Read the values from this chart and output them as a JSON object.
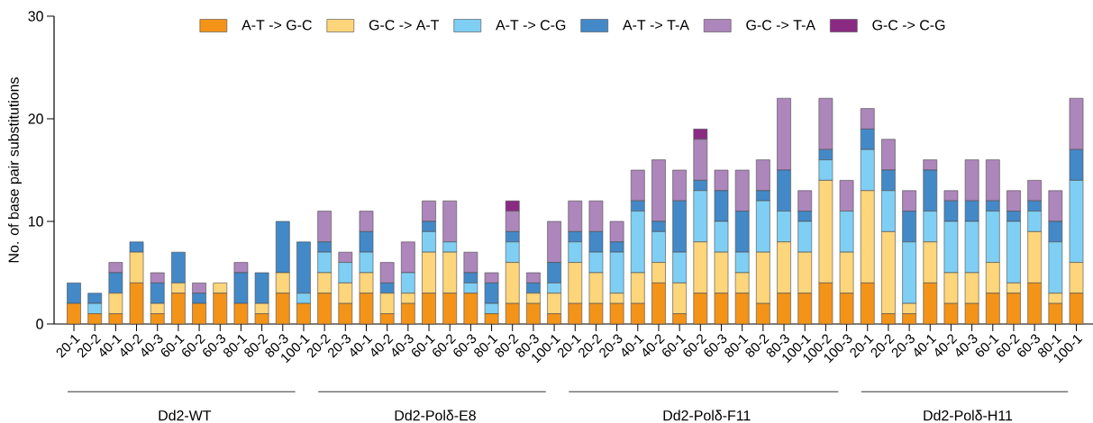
{
  "chart_data": {
    "type": "bar",
    "stacked": true,
    "ylabel": "No. of base pair substitutions",
    "categories": [
      "20-1",
      "20-2",
      "40-1",
      "40-2",
      "40-3",
      "60-1",
      "60-2",
      "60-3",
      "80-1",
      "80-2",
      "80-3",
      "100-1",
      "20-2",
      "20-3",
      "40-1",
      "40-2",
      "40-3",
      "60-1",
      "60-2",
      "60-3",
      "80-1",
      "80-2",
      "80-3",
      "100-1",
      "20-1",
      "20-2",
      "20-3",
      "40-1",
      "40-2",
      "60-1",
      "60-2",
      "60-3",
      "80-1",
      "80-2",
      "80-3",
      "100-1",
      "100-2",
      "100-3",
      "20-1",
      "20-2",
      "20-3",
      "40-1",
      "40-2",
      "40-3",
      "60-1",
      "60-2",
      "60-3",
      "80-1",
      "100-1"
    ],
    "series": [
      {
        "name": "A-T -> G-C",
        "color": "#f39419",
        "values": [
          2,
          1,
          1,
          4,
          1,
          3,
          2,
          3,
          2,
          1,
          3,
          2,
          3,
          2,
          3,
          1,
          2,
          3,
          3,
          3,
          1,
          2,
          2,
          1,
          2,
          2,
          2,
          2,
          4,
          1,
          3,
          3,
          3,
          2,
          3,
          3,
          4,
          3,
          4,
          1,
          1,
          4,
          2,
          2,
          3,
          3,
          4,
          2,
          3
        ]
      },
      {
        "name": "G-C -> A-T",
        "color": "#fdd57a",
        "values": [
          0,
          0,
          2,
          3,
          1,
          1,
          0,
          1,
          0,
          1,
          2,
          0,
          2,
          2,
          2,
          2,
          1,
          4,
          4,
          0,
          0,
          4,
          1,
          2,
          4,
          3,
          1,
          3,
          2,
          3,
          5,
          4,
          2,
          5,
          5,
          4,
          10,
          4,
          9,
          8,
          1,
          4,
          3,
          3,
          3,
          1,
          5,
          1,
          3
        ]
      },
      {
        "name": "A-T -> C-G",
        "color": "#7fcff5",
        "values": [
          0,
          1,
          0,
          0,
          0,
          0,
          0,
          0,
          0,
          0,
          0,
          1,
          2,
          2,
          2,
          0,
          2,
          2,
          1,
          1,
          1,
          2,
          0,
          1,
          2,
          2,
          4,
          6,
          3,
          3,
          5,
          3,
          2,
          5,
          3,
          3,
          2,
          4,
          4,
          4,
          6,
          3,
          5,
          5,
          5,
          6,
          2,
          5,
          8
        ]
      },
      {
        "name": "A-T -> T-A",
        "color": "#4389c8",
        "values": [
          2,
          1,
          2,
          1,
          2,
          3,
          1,
          0,
          3,
          3,
          5,
          5,
          1,
          0,
          2,
          1,
          0,
          1,
          0,
          1,
          2,
          1,
          1,
          2,
          1,
          2,
          1,
          1,
          1,
          5,
          1,
          3,
          4,
          1,
          4,
          1,
          1,
          0,
          2,
          2,
          3,
          4,
          2,
          2,
          1,
          1,
          1,
          2,
          3
        ]
      },
      {
        "name": "G-C -> T-A",
        "color": "#ad86bb",
        "values": [
          0,
          0,
          1,
          0,
          1,
          0,
          1,
          0,
          1,
          0,
          0,
          0,
          3,
          1,
          2,
          2,
          3,
          2,
          4,
          2,
          1,
          2,
          1,
          4,
          3,
          3,
          2,
          3,
          6,
          3,
          4,
          2,
          4,
          3,
          7,
          2,
          5,
          3,
          2,
          3,
          2,
          1,
          1,
          4,
          4,
          2,
          2,
          3,
          5
        ]
      },
      {
        "name": "G-C -> C-G",
        "color": "#8b2a83",
        "values": [
          0,
          0,
          0,
          0,
          0,
          0,
          0,
          0,
          0,
          0,
          0,
          0,
          0,
          0,
          0,
          0,
          0,
          0,
          0,
          0,
          0,
          1,
          0,
          0,
          0,
          0,
          0,
          0,
          0,
          0,
          1,
          0,
          0,
          0,
          0,
          0,
          0,
          0,
          0,
          0,
          0,
          0,
          0,
          0,
          0,
          0,
          0,
          0,
          0
        ]
      }
    ],
    "ylim": [
      0,
      30
    ],
    "yticks": [
      0,
      10,
      20,
      30
    ],
    "grid": false,
    "legend": "top",
    "annotations": [
      "Dd2-WT",
      "Dd2-Polδ-E8",
      "Dd2-Polδ-F11",
      "Dd2-Polδ-H11"
    ]
  }
}
